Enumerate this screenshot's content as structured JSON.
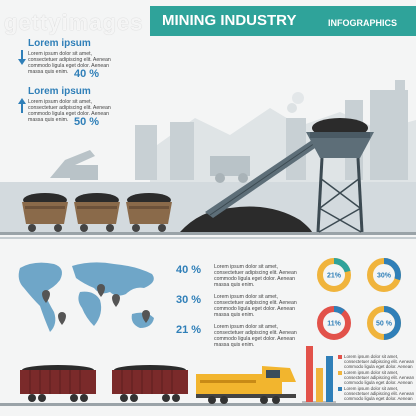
{
  "header": {
    "title": "MINING INDUSTRY",
    "subtitle": "INFOGRAPHICS",
    "watermark": "gettyimages"
  },
  "top_stats": [
    {
      "heading": "Lorem ipsum",
      "body": [
        "Lorem ipsum dolor sit amet,",
        "consectetuer adipiscing elit. Aenean",
        "commodo ligula eget dolor. Aenean",
        "massa quis enim."
      ],
      "percent": "40 %",
      "arrow": "down-arrow-icon"
    },
    {
      "heading": "Lorem ipsum",
      "body": [
        "Lorem ipsum dolor sit amet,",
        "consectetuer adipiscing elit. Aenean",
        "commodo ligula eget dolor. Aenean",
        "massa quis enim."
      ],
      "percent": "50 %",
      "arrow": "up-arrow-icon"
    }
  ],
  "middle_stats": [
    {
      "percent": "40 %",
      "body": [
        "Lorem ipsum dolor sit amet,",
        "consectetuer adipiscing elit. Aenean",
        "commodo ligula eget dolor. Aenean",
        "massa quis enim."
      ]
    },
    {
      "percent": "30 %",
      "body": [
        "Lorem ipsum dolor sit amet,",
        "consectetuer adipiscing elit. Aenean",
        "commodo ligula eget dolor. Aenean",
        "massa quis enim."
      ]
    },
    {
      "percent": "21 %",
      "body": [
        "Lorem ipsum dolor sit amet,",
        "consectetuer adipiscing elit. Aenean",
        "commodo ligula eget dolor. Aenean",
        "massa quis enim."
      ]
    }
  ],
  "donuts": [
    {
      "label": "21%",
      "value": 21,
      "color": "#2fa39a",
      "track": "#f0b43c"
    },
    {
      "label": "30%",
      "value": 30,
      "color": "#2f7fb8",
      "track": "#f0b43c"
    },
    {
      "label": "11%",
      "value": 11,
      "color": "#2f7fb8",
      "track": "#e2524a"
    },
    {
      "label": "50 %",
      "value": 50,
      "color": "#2f7fb8",
      "track": "#f0b43c"
    }
  ],
  "bar_legend": [
    {
      "color": "#e2524a",
      "body": [
        "Lorem ipsum dolor sit amet,",
        "consectetuer adipiscing elit. Aenean",
        "commodo ligula eget dolor. Aenean"
      ]
    },
    {
      "color": "#f0b43c",
      "body": [
        "Lorem ipsum dolor sit amet,",
        "consectetuer adipiscing elit. Aenean",
        "commodo ligula eget dolor. Aenean"
      ]
    },
    {
      "color": "#2f7fb8",
      "body": [
        "Lorem ipsum dolor sit amet,",
        "consectetuer adipiscing elit. Aenean",
        "commodo ligula eget dolor. Aenean"
      ]
    }
  ],
  "colors": {
    "teal": "#2fa39a",
    "blue": "#2f7fb8",
    "red": "#e2524a",
    "yellow": "#f0b43c",
    "coal": "#2b2b2b",
    "wagon": "#8a6a4a",
    "freight": "#7a2a2a",
    "locomotive": "#f2b52e"
  }
}
